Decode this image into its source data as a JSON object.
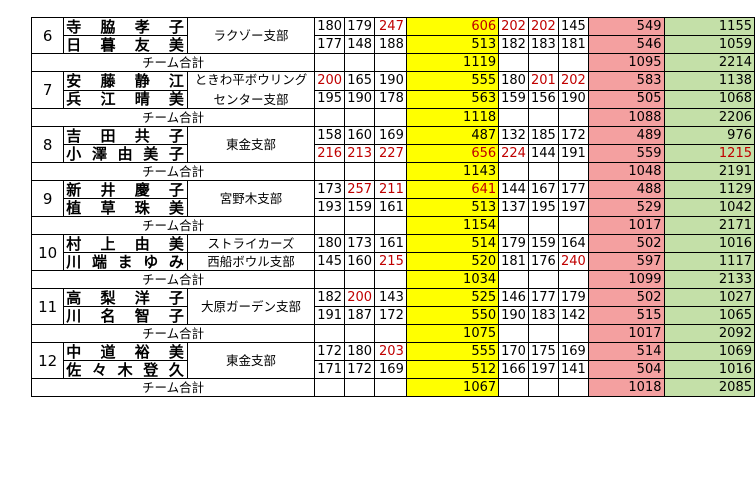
{
  "accent_colors": {
    "total": "#ffff00",
    "pink": "#f4a0a0",
    "green": "#c4e0a8",
    "red_text": "#c00000"
  },
  "team_label": "チーム合計",
  "teams": [
    {
      "rank": "6",
      "club": "ラクゾー支部",
      "players": [
        {
          "name": "寺脇孝子",
          "games": [
            {
              "v": "180",
              "red": false
            },
            {
              "v": "179",
              "red": false
            },
            {
              "v": "247",
              "red": true
            }
          ],
          "total": "606",
          "total_red": true,
          "games2": [
            {
              "v": "202",
              "red": true
            },
            {
              "v": "202",
              "red": true
            },
            {
              "v": "145",
              "red": false
            }
          ],
          "sub": "549",
          "sum": "1155",
          "sum_red": false
        },
        {
          "name": "日暮友美",
          "games": [
            {
              "v": "177",
              "red": false
            },
            {
              "v": "148",
              "red": false
            },
            {
              "v": "188",
              "red": false
            }
          ],
          "total": "513",
          "total_red": false,
          "games2": [
            {
              "v": "182",
              "red": false
            },
            {
              "v": "183",
              "red": false
            },
            {
              "v": "181",
              "red": false
            }
          ],
          "sub": "546",
          "sum": "1059",
          "sum_red": false
        }
      ],
      "team_total": "1119",
      "team_sub": "1095",
      "team_sum": "2214"
    },
    {
      "rank": "7",
      "club": "ときわ平ボウリング",
      "club2": "センター支部",
      "players": [
        {
          "name": "安藤静江",
          "games": [
            {
              "v": "200",
              "red": true
            },
            {
              "v": "165",
              "red": false
            },
            {
              "v": "190",
              "red": false
            }
          ],
          "total": "555",
          "total_red": false,
          "games2": [
            {
              "v": "180",
              "red": false
            },
            {
              "v": "201",
              "red": true
            },
            {
              "v": "202",
              "red": true
            }
          ],
          "sub": "583",
          "sum": "1138",
          "sum_red": false
        },
        {
          "name": "兵江晴美",
          "games": [
            {
              "v": "195",
              "red": false
            },
            {
              "v": "190",
              "red": false
            },
            {
              "v": "178",
              "red": false
            }
          ],
          "total": "563",
          "total_red": false,
          "games2": [
            {
              "v": "159",
              "red": false
            },
            {
              "v": "156",
              "red": false
            },
            {
              "v": "190",
              "red": false
            }
          ],
          "sub": "505",
          "sum": "1068",
          "sum_red": false
        }
      ],
      "team_total": "1118",
      "team_sub": "1088",
      "team_sum": "2206"
    },
    {
      "rank": "8",
      "club": "東金支部",
      "players": [
        {
          "name": "吉田共子",
          "games": [
            {
              "v": "158",
              "red": false
            },
            {
              "v": "160",
              "red": false
            },
            {
              "v": "169",
              "red": false
            }
          ],
          "total": "487",
          "total_red": false,
          "games2": [
            {
              "v": "132",
              "red": false
            },
            {
              "v": "185",
              "red": false
            },
            {
              "v": "172",
              "red": false
            }
          ],
          "sub": "489",
          "sum": "976",
          "sum_red": false
        },
        {
          "name": "小澤由美子",
          "games": [
            {
              "v": "216",
              "red": true
            },
            {
              "v": "213",
              "red": true
            },
            {
              "v": "227",
              "red": true
            }
          ],
          "total": "656",
          "total_red": true,
          "games2": [
            {
              "v": "224",
              "red": true
            },
            {
              "v": "144",
              "red": false
            },
            {
              "v": "191",
              "red": false
            }
          ],
          "sub": "559",
          "sum": "1215",
          "sum_red": true
        }
      ],
      "team_total": "1143",
      "team_sub": "1048",
      "team_sum": "2191"
    },
    {
      "rank": "9",
      "club": "宮野木支部",
      "players": [
        {
          "name": "新井慶子",
          "games": [
            {
              "v": "173",
              "red": false
            },
            {
              "v": "257",
              "red": true
            },
            {
              "v": "211",
              "red": true
            }
          ],
          "total": "641",
          "total_red": true,
          "games2": [
            {
              "v": "144",
              "red": false
            },
            {
              "v": "167",
              "red": false
            },
            {
              "v": "177",
              "red": false
            }
          ],
          "sub": "488",
          "sum": "1129",
          "sum_red": false
        },
        {
          "name": "植草珠美",
          "games": [
            {
              "v": "193",
              "red": false
            },
            {
              "v": "159",
              "red": false
            },
            {
              "v": "161",
              "red": false
            }
          ],
          "total": "513",
          "total_red": false,
          "games2": [
            {
              "v": "137",
              "red": false
            },
            {
              "v": "195",
              "red": false
            },
            {
              "v": "197",
              "red": false
            }
          ],
          "sub": "529",
          "sum": "1042",
          "sum_red": false
        }
      ],
      "team_total": "1154",
      "team_sub": "1017",
      "team_sum": "2171"
    },
    {
      "rank": "10",
      "club": "ストライカーズ",
      "club2": "西船ボウル支部",
      "split_club": true,
      "players": [
        {
          "name": "村上由美",
          "games": [
            {
              "v": "180",
              "red": false
            },
            {
              "v": "173",
              "red": false
            },
            {
              "v": "161",
              "red": false
            }
          ],
          "total": "514",
          "total_red": false,
          "games2": [
            {
              "v": "179",
              "red": false
            },
            {
              "v": "159",
              "red": false
            },
            {
              "v": "164",
              "red": false
            }
          ],
          "sub": "502",
          "sum": "1016",
          "sum_red": false
        },
        {
          "name": "川端まゆみ",
          "games": [
            {
              "v": "145",
              "red": false
            },
            {
              "v": "160",
              "red": false
            },
            {
              "v": "215",
              "red": true
            }
          ],
          "total": "520",
          "total_red": false,
          "games2": [
            {
              "v": "181",
              "red": false
            },
            {
              "v": "176",
              "red": false
            },
            {
              "v": "240",
              "red": true
            }
          ],
          "sub": "597",
          "sum": "1117",
          "sum_red": false
        }
      ],
      "team_total": "1034",
      "team_sub": "1099",
      "team_sum": "2133"
    },
    {
      "rank": "11",
      "club": "大原ガーデン支部",
      "players": [
        {
          "name": "高梨洋子",
          "games": [
            {
              "v": "182",
              "red": false
            },
            {
              "v": "200",
              "red": true
            },
            {
              "v": "143",
              "red": false
            }
          ],
          "total": "525",
          "total_red": false,
          "games2": [
            {
              "v": "146",
              "red": false
            },
            {
              "v": "177",
              "red": false
            },
            {
              "v": "179",
              "red": false
            }
          ],
          "sub": "502",
          "sum": "1027",
          "sum_red": false
        },
        {
          "name": "川名智子",
          "games": [
            {
              "v": "191",
              "red": false
            },
            {
              "v": "187",
              "red": false
            },
            {
              "v": "172",
              "red": false
            }
          ],
          "total": "550",
          "total_red": false,
          "games2": [
            {
              "v": "190",
              "red": false
            },
            {
              "v": "183",
              "red": false
            },
            {
              "v": "142",
              "red": false
            }
          ],
          "sub": "515",
          "sum": "1065",
          "sum_red": false
        }
      ],
      "team_total": "1075",
      "team_sub": "1017",
      "team_sum": "2092"
    },
    {
      "rank": "12",
      "club": "東金支部",
      "players": [
        {
          "name": "中道裕美",
          "games": [
            {
              "v": "172",
              "red": false
            },
            {
              "v": "180",
              "red": false
            },
            {
              "v": "203",
              "red": true
            }
          ],
          "total": "555",
          "total_red": false,
          "games2": [
            {
              "v": "170",
              "red": false
            },
            {
              "v": "175",
              "red": false
            },
            {
              "v": "169",
              "red": false
            }
          ],
          "sub": "514",
          "sum": "1069",
          "sum_red": false
        },
        {
          "name": "佐々木登久",
          "games": [
            {
              "v": "171",
              "red": false
            },
            {
              "v": "172",
              "red": false
            },
            {
              "v": "169",
              "red": false
            }
          ],
          "total": "512",
          "total_red": false,
          "games2": [
            {
              "v": "166",
              "red": false
            },
            {
              "v": "197",
              "red": false
            },
            {
              "v": "141",
              "red": false
            }
          ],
          "sub": "504",
          "sum": "1016",
          "sum_red": false
        }
      ],
      "team_total": "1067",
      "team_sub": "1018",
      "team_sum": "2085"
    }
  ]
}
